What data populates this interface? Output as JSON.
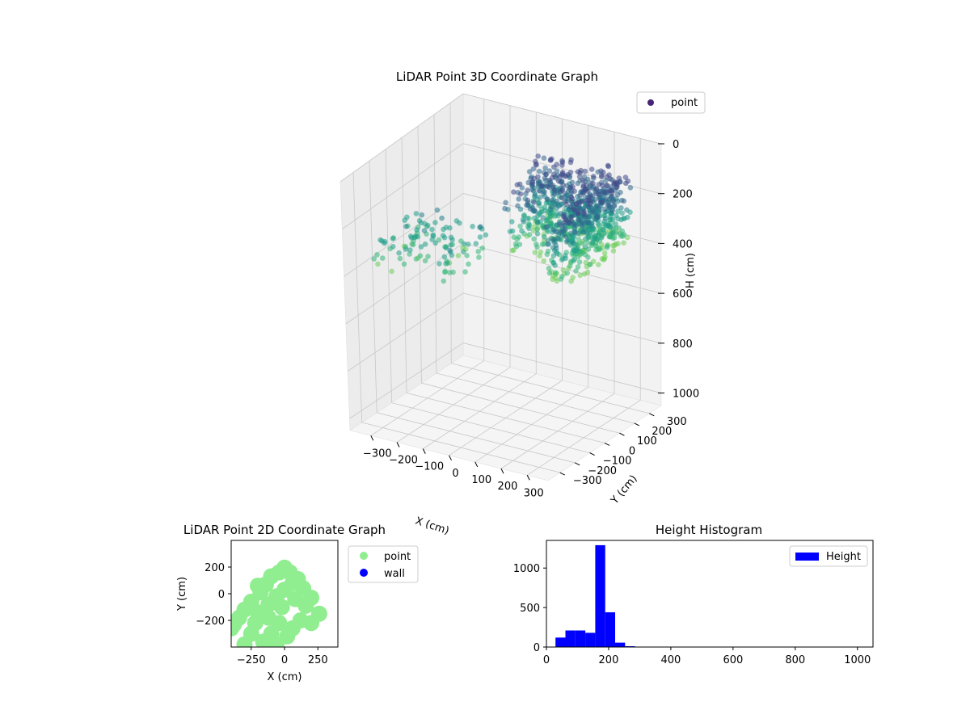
{
  "chart_data": [
    {
      "type": "scatter",
      "title": "LiDAR Point 3D Coordinate Graph",
      "xlabel": "X (cm)",
      "ylabel": "Y (cm)",
      "zlabel": "H (cm)",
      "xlim": [
        -380,
        380
      ],
      "ylim": [
        -380,
        380
      ],
      "zlim": [
        0,
        1050
      ],
      "z_inverted": true,
      "xticks": [
        -300,
        -200,
        -100,
        0,
        100,
        200,
        300
      ],
      "yticks": [
        -300,
        -200,
        -100,
        0,
        100,
        200,
        300
      ],
      "zticks": [
        0,
        200,
        400,
        600,
        800,
        1000
      ],
      "legend": [
        "point"
      ],
      "legend_position": "top-right",
      "colormap": "viridis",
      "colormap_range": [
        0,
        400
      ],
      "grid": true,
      "series": [
        {
          "name": "point",
          "color": "#482677",
          "x_range": [
            -330,
            330
          ],
          "y_range": [
            -330,
            330
          ],
          "h_range": [
            20,
            300
          ]
        }
      ]
    },
    {
      "type": "scatter",
      "title": "LiDAR Point 2D Coordinate Graph",
      "xlabel": "X (cm)",
      "ylabel": "Y (cm)",
      "xlim": [
        -400,
        400
      ],
      "ylim": [
        -400,
        400
      ],
      "xticks": [
        -250,
        0,
        250
      ],
      "yticks": [
        -200,
        0,
        200
      ],
      "legend_position": "outside-right",
      "series": [
        {
          "name": "point",
          "color": "#90ee90",
          "points": [
            [
              0,
              195
            ],
            [
              -40,
              160
            ],
            [
              40,
              160
            ],
            [
              -100,
              130
            ],
            [
              100,
              110
            ],
            [
              -140,
              70
            ],
            [
              -200,
              60
            ],
            [
              140,
              40
            ],
            [
              -180,
              10
            ],
            [
              200,
              -30
            ],
            [
              -250,
              -60
            ],
            [
              260,
              -150
            ],
            [
              -300,
              -120
            ],
            [
              -340,
              -180
            ],
            [
              -380,
              -230
            ],
            [
              -400,
              -260
            ],
            [
              -200,
              -140
            ],
            [
              -120,
              -80
            ],
            [
              -60,
              -20
            ],
            [
              0,
              30
            ],
            [
              60,
              80
            ],
            [
              -20,
              -100
            ],
            [
              80,
              -40
            ],
            [
              160,
              -90
            ],
            [
              120,
              -200
            ],
            [
              60,
              -260
            ],
            [
              -40,
              -220
            ],
            [
              -100,
              -300
            ],
            [
              -160,
              -360
            ],
            [
              -250,
              -300
            ],
            [
              -300,
              -380
            ],
            [
              200,
              -220
            ],
            [
              20,
              -320
            ],
            [
              -60,
              -380
            ],
            [
              -120,
              -180
            ],
            [
              -220,
              -220
            ]
          ]
        },
        {
          "name": "wall",
          "color": "#0000ff",
          "points": []
        }
      ]
    },
    {
      "type": "bar",
      "title": "Height Histogram",
      "xlim": [
        0,
        1050
      ],
      "ylim": [
        0,
        1350
      ],
      "xticks": [
        0,
        200,
        400,
        600,
        800,
        1000
      ],
      "yticks": [
        0,
        500,
        1000
      ],
      "legend_position": "top-right",
      "series": [
        {
          "name": "Height",
          "color": "#0000ff",
          "bin_edges": [
            29,
            61,
            93,
            125,
            157,
            189,
            221,
            253,
            285
          ],
          "values": [
            120,
            210,
            210,
            180,
            1290,
            440,
            55,
            10
          ]
        }
      ]
    }
  ]
}
